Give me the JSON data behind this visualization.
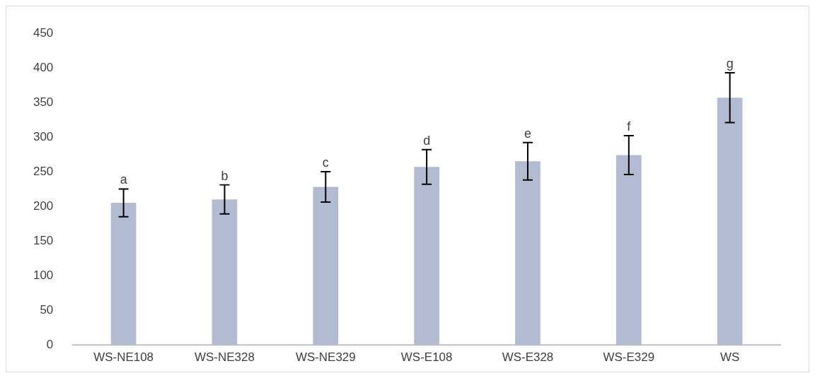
{
  "chart_data": {
    "type": "bar",
    "categories": [
      "WS-NE108",
      "WS-NE328",
      "WS-NE329",
      "WS-E108",
      "WS-E328",
      "WS-E329",
      "WS"
    ],
    "values": [
      205,
      210,
      228,
      257,
      265,
      274,
      357
    ],
    "errors": [
      20,
      21,
      22,
      25,
      27,
      28,
      36
    ],
    "color": "#b3bbd3",
    "ylim": [
      0,
      450
    ],
    "yticks": [
      0,
      50,
      100,
      150,
      200,
      250,
      300,
      350,
      400,
      450
    ],
    "grid": false,
    "legend": false,
    "annotations": [
      {
        "text": "a",
        "x": "WS-NE108",
        "y": 225
      },
      {
        "text": "b",
        "x": "WS-NE328",
        "y": 231
      },
      {
        "text": "c",
        "x": "WS-NE329",
        "y": 250
      },
      {
        "text": "d",
        "x": "WS-E108",
        "y": 282
      },
      {
        "text": "e",
        "x": "WS-E328",
        "y": 292
      },
      {
        "text": "f",
        "x": "WS-E329",
        "y": 302
      },
      {
        "text": "g",
        "x": "WS",
        "y": 393
      }
    ]
  }
}
